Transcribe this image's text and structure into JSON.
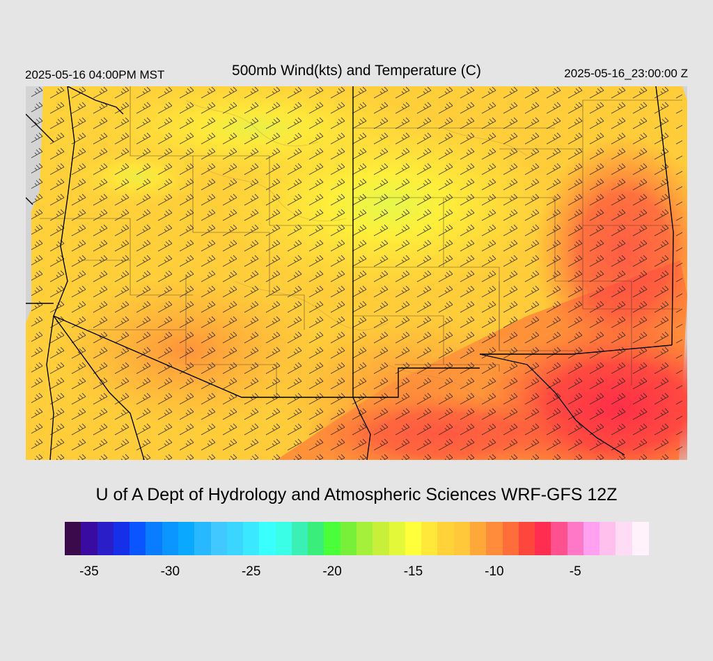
{
  "header": {
    "valid_local": "2025-05-16 04:00PM MST",
    "title": "500mb Wind(kts) and Temperature (C)",
    "valid_utc": "2025-05-16_23:00:00 Z"
  },
  "footer": {
    "credit": "U of A Dept of Hydrology and Atmospheric Sciences WRF-GFS 12Z"
  },
  "map": {
    "background_color": "#d4d4d4",
    "field": "500mb temperature (C)",
    "wind_barbs_dominant_speed_kts": 25,
    "temperature_range_c": [
      -16,
      -8
    ]
  },
  "colorbar": {
    "tick_labels": [
      "-35",
      "-30",
      "-25",
      "-20",
      "-15",
      "-10",
      "-5"
    ],
    "tick_values": [
      -35,
      -30,
      -25,
      -20,
      -15,
      -10,
      -5
    ],
    "min": -36,
    "step": 1,
    "colors": [
      "#3a0a4a",
      "#3a0ba0",
      "#2a1ec8",
      "#1530e8",
      "#0a55ff",
      "#0a7cff",
      "#0a95ff",
      "#0aa8ff",
      "#28b8ff",
      "#40c8ff",
      "#3ad6ff",
      "#3ae8ff",
      "#3affff",
      "#3affe6",
      "#3af0b4",
      "#3aee7c",
      "#4aff3a",
      "#78f03a",
      "#a4f03a",
      "#c8f03a",
      "#e4f83a",
      "#ffff3a",
      "#ffe83a",
      "#ffd23a",
      "#ffc83a",
      "#ffa83a",
      "#ff8c3a",
      "#ff6e3a",
      "#ff463c",
      "#ff2e50",
      "#ff5090",
      "#ff78c8",
      "#ffa0f0",
      "#ffc0ee",
      "#ffdcf6",
      "#fff2fa"
    ]
  }
}
